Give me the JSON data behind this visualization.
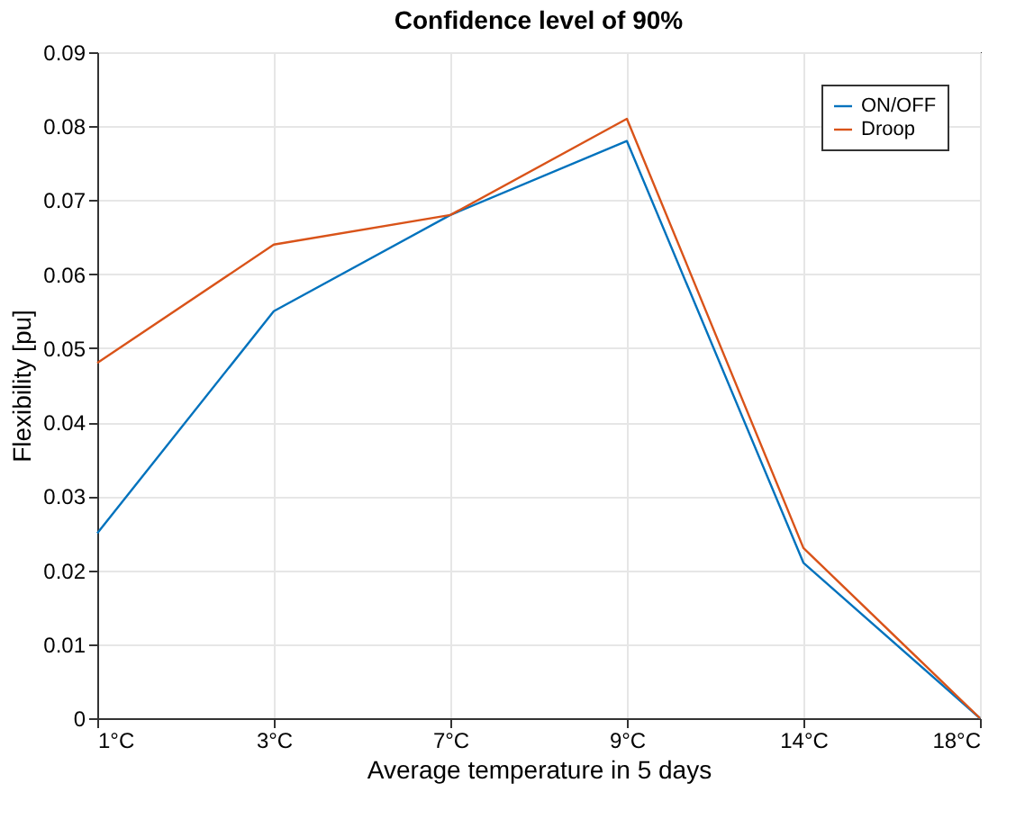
{
  "chart_data": {
    "type": "line",
    "title": "Confidence level of 90%",
    "xlabel": "Average temperature in 5 days",
    "ylabel": "Flexibility [pu]",
    "categories": [
      "1°C",
      "3°C",
      "7°C",
      "9°C",
      "14°C",
      "18°C"
    ],
    "series": [
      {
        "name": "ON/OFF",
        "color": "#0072bd",
        "values": [
          0.025,
          0.055,
          0.068,
          0.078,
          0.021,
          0.0
        ]
      },
      {
        "name": "Droop",
        "color": "#d95319",
        "values": [
          0.048,
          0.064,
          0.068,
          0.081,
          0.023,
          0.0
        ]
      }
    ],
    "ylim": [
      0,
      0.09
    ],
    "yticks": [
      0,
      0.01,
      0.02,
      0.03,
      0.04,
      0.05,
      0.06,
      0.07,
      0.08,
      0.09
    ],
    "grid": true,
    "legend": "top right",
    "marker": "none",
    "line_style": "solid"
  }
}
